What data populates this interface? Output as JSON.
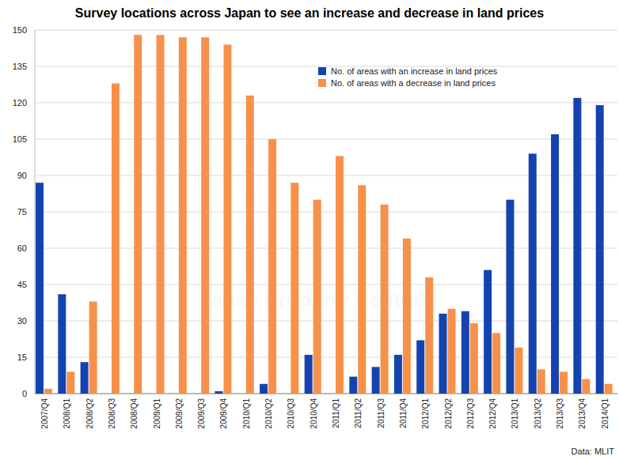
{
  "chart_data": {
    "type": "bar",
    "title": "Survey locations across Japan to see an increase and decrease in land prices",
    "source": "Data: MLIT",
    "watermark": "Japan Property Central",
    "categories": [
      "2007/Q4",
      "2008/Q1",
      "2008/Q2",
      "2008/Q3",
      "2008/Q4",
      "2009/Q1",
      "2009/Q2",
      "2009/Q3",
      "2009/Q4",
      "2010/Q1",
      "2010/Q2",
      "2010/Q3",
      "2010/Q4",
      "2011/Q1",
      "2011/Q2",
      "2011/Q3",
      "2011/Q4",
      "2012/Q1",
      "2012/Q2",
      "2012/Q3",
      "2012/Q4",
      "2013/Q1",
      "2013/Q2",
      "2013/Q3",
      "2013/Q4",
      "2014/Q1"
    ],
    "series": [
      {
        "name": "No. of areas with an increase in land prices",
        "color": "#1443b0",
        "values": [
          87,
          41,
          13,
          0,
          0,
          0,
          0,
          0,
          1,
          0,
          4,
          0,
          16,
          0,
          7,
          11,
          16,
          22,
          33,
          34,
          51,
          80,
          99,
          107,
          122,
          119
        ]
      },
      {
        "name": "No. of areas with a decrease in land prices",
        "color": "#f7914a",
        "values": [
          2,
          9,
          38,
          128,
          148,
          148,
          147,
          147,
          144,
          123,
          105,
          87,
          80,
          98,
          86,
          78,
          64,
          48,
          35,
          29,
          25,
          19,
          10,
          9,
          6,
          4
        ]
      }
    ],
    "ylim": [
      0,
      150
    ],
    "yticks": [
      0,
      15,
      30,
      45,
      60,
      75,
      90,
      105,
      120,
      135,
      150
    ],
    "grid": true,
    "legend": "top-right"
  }
}
